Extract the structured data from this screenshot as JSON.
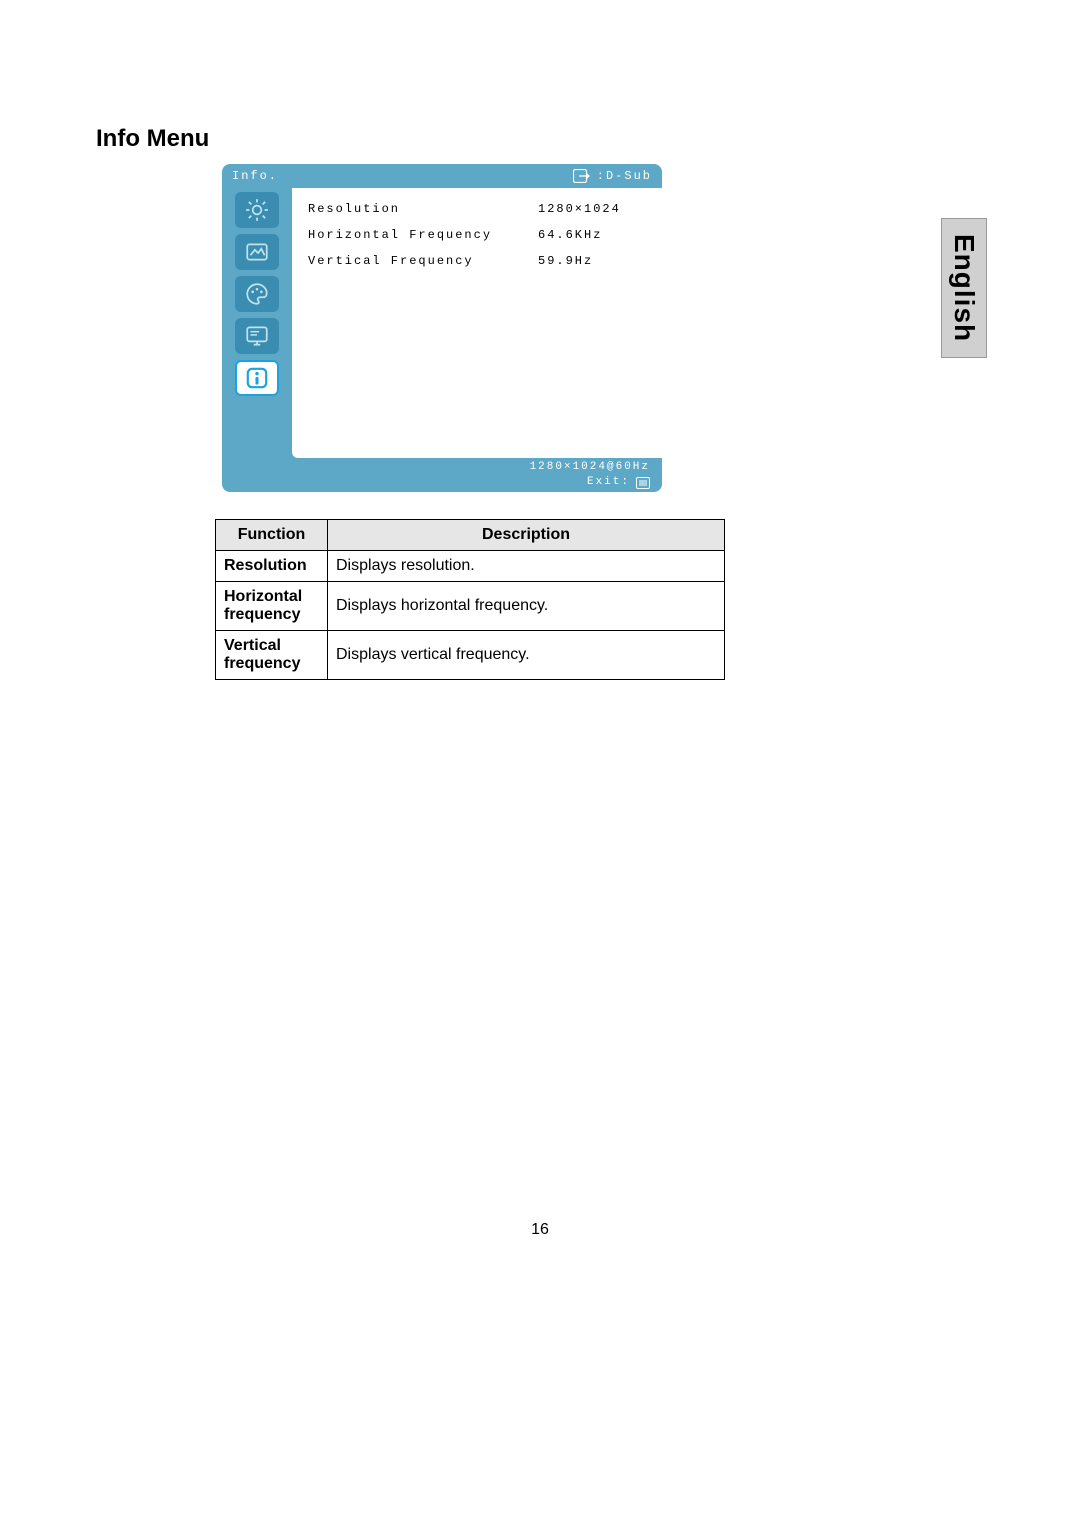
{
  "page": {
    "heading": "Info Menu",
    "language_tab": "English",
    "page_number": "16"
  },
  "osd": {
    "colors": {
      "frame": "#5da7c7",
      "header_text": "#ffffff",
      "content_bg": "#ffffff",
      "content_text": "#000000",
      "tab_normal_bg": "#3a8cb0",
      "tab_normal_icon": "#bfe4f0",
      "tab_selected_bg": "#ffffff",
      "tab_selected_icon": "#1aa4dd",
      "tab_selected_border": "#1aa4dd"
    },
    "header": {
      "title": "Info.",
      "input_label": ":D-Sub"
    },
    "rows": [
      {
        "label": "Resolution",
        "value": "1280×1024"
      },
      {
        "label": "Horizontal Frequency",
        "value": "64.6KHz"
      },
      {
        "label": "Vertical Frequency",
        "value": "59.9Hz"
      }
    ],
    "footer": {
      "mode": "1280×1024@60Hz",
      "exit_label": "Exit:"
    },
    "tabs": [
      {
        "name": "brightness-tab",
        "selected": false
      },
      {
        "name": "image-tab",
        "selected": false
      },
      {
        "name": "color-tab",
        "selected": false
      },
      {
        "name": "osd-tab",
        "selected": false
      },
      {
        "name": "info-tab",
        "selected": true
      }
    ]
  },
  "table": {
    "columns": [
      "Function",
      "Description"
    ],
    "rows": [
      [
        "Resolution",
        "Displays resolution."
      ],
      [
        "Horizontal frequency",
        "Displays horizontal frequency."
      ],
      [
        "Vertical frequency",
        "Displays vertical frequency."
      ]
    ]
  }
}
